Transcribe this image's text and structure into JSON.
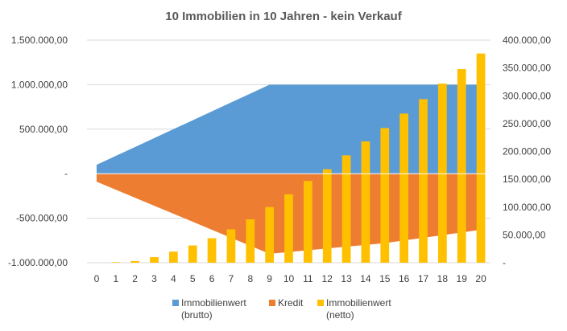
{
  "chart_data": {
    "type": "bar+area",
    "title": "10 Immobilien in 10 Jahren - kein Verkauf",
    "x": [
      0,
      1,
      2,
      3,
      4,
      5,
      6,
      7,
      8,
      9,
      10,
      11,
      12,
      13,
      14,
      15,
      16,
      17,
      18,
      19,
      20
    ],
    "x_tick_labels": [
      "0",
      "1",
      "2",
      "3",
      "4",
      "5",
      "6",
      "7",
      "8",
      "9",
      "10",
      "11",
      "12",
      "13",
      "14",
      "15",
      "16",
      "17",
      "18",
      "19",
      "20"
    ],
    "y_left": {
      "ylim": [
        -1000000,
        1500000
      ],
      "ticks": [
        -1000000,
        -500000,
        0,
        500000,
        1000000,
        1500000
      ],
      "tick_labels": [
        "-1.000.000,00",
        "-500.000,00",
        "-",
        "500.000,00",
        "1.000.000,00",
        "1.500.000,00"
      ]
    },
    "y_right": {
      "ylim": [
        0,
        400000
      ],
      "ticks": [
        0,
        50000,
        100000,
        150000,
        200000,
        250000,
        300000,
        350000,
        400000
      ],
      "tick_labels": [
        "-",
        "50.000,00",
        "100.000,00",
        "150.000,00",
        "200.000,00",
        "250.000,00",
        "300.000,00",
        "350.000,00",
        "400.000,00"
      ]
    },
    "grid": true,
    "legend_position": "bottom",
    "series": [
      {
        "name": "Immobilienwert (brutto)",
        "legend_lines": [
          "Immobilienwert",
          "(brutto)"
        ],
        "type": "area",
        "axis": "left",
        "color": "#5b9bd5",
        "values": [
          100000,
          200000,
          300000,
          400000,
          500000,
          600000,
          700000,
          800000,
          900000,
          1000000,
          1000000,
          1000000,
          1000000,
          1000000,
          1000000,
          1000000,
          1000000,
          1000000,
          1000000,
          1000000,
          1000000
        ]
      },
      {
        "name": "Kredit",
        "legend_lines": [
          "Kredit"
        ],
        "type": "area",
        "axis": "left",
        "color": "#ed7d31",
        "values": [
          -90000,
          -180000,
          -270000,
          -360000,
          -450000,
          -540000,
          -630000,
          -720000,
          -810000,
          -900000,
          -880000,
          -860000,
          -840000,
          -820000,
          -800000,
          -780000,
          -750000,
          -720000,
          -690000,
          -660000,
          -630000
        ]
      },
      {
        "name": "Immobilienwert (netto)",
        "legend_lines": [
          "Immobilienwert",
          "(netto)"
        ],
        "type": "bar",
        "axis": "right",
        "color": "#ffc000",
        "values": [
          0,
          1000,
          3000,
          10000,
          20000,
          31000,
          44000,
          60000,
          78000,
          100000,
          123000,
          147000,
          168000,
          193000,
          218000,
          242000,
          268000,
          294000,
          322000,
          348000,
          376000
        ]
      }
    ]
  }
}
